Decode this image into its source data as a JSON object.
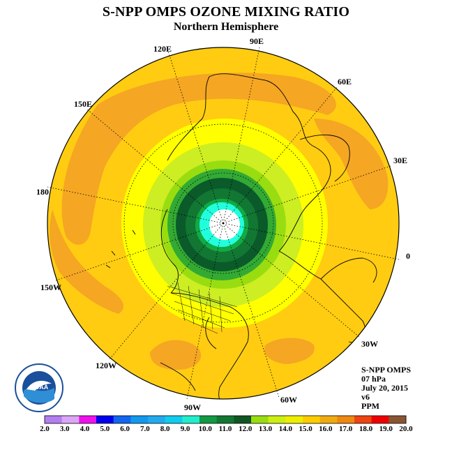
{
  "header": {
    "title": "S-NPP OMPS OZONE MIXING RATIO",
    "subtitle": "Northern Hemisphere"
  },
  "longitude_labels": [
    "90E",
    "60E",
    "30E",
    "0",
    "30W",
    "60W",
    "90W",
    "120W",
    "150W",
    "180",
    "150E",
    "120E"
  ],
  "info": {
    "instrument": "S-NPP OMPS",
    "level": "07 hPa",
    "date": "July 20, 2015",
    "version": "v6",
    "units": "PPM"
  },
  "logo": {
    "text": "NOAA",
    "ring_text": "NATIONAL OCEANIC AND ATMOSPHERIC ADMINISTRATION · U.S. DEPARTMENT OF COMMERCE"
  },
  "colorbar": {
    "ticks": [
      "2.0",
      "3.0",
      "4.0",
      "5.0",
      "6.0",
      "7.0",
      "8.0",
      "9.0",
      "10.0",
      "11.0",
      "12.0",
      "13.0",
      "14.0",
      "15.0",
      "16.0",
      "17.0",
      "18.0",
      "19.0",
      "20.0"
    ],
    "colors": [
      "#b27ff0",
      "#dba6f5",
      "#ee11ee",
      "#0000ee",
      "#1166ee",
      "#1199ee",
      "#22aaee",
      "#11ccee",
      "#22eecc",
      "#119944",
      "#117733",
      "#115522",
      "#99dd11",
      "#ccee11",
      "#eeee00",
      "#ffcc00",
      "#f0aa11",
      "#ee8811",
      "#ee4411",
      "#ee0000",
      "#885533"
    ]
  },
  "contours": {
    "bands_ppm": [
      9.0,
      10.0,
      11.0,
      12.0,
      13.0,
      14.0,
      15.0,
      16.0,
      17.0
    ],
    "band_colors": [
      "#ffffff",
      "#22ffdd",
      "#11aa44",
      "#117733",
      "#0a5a2a",
      "#33aa33",
      "#99dd11",
      "#ccee22",
      "#ffff00",
      "#ffcc11",
      "#f5a623"
    ]
  }
}
